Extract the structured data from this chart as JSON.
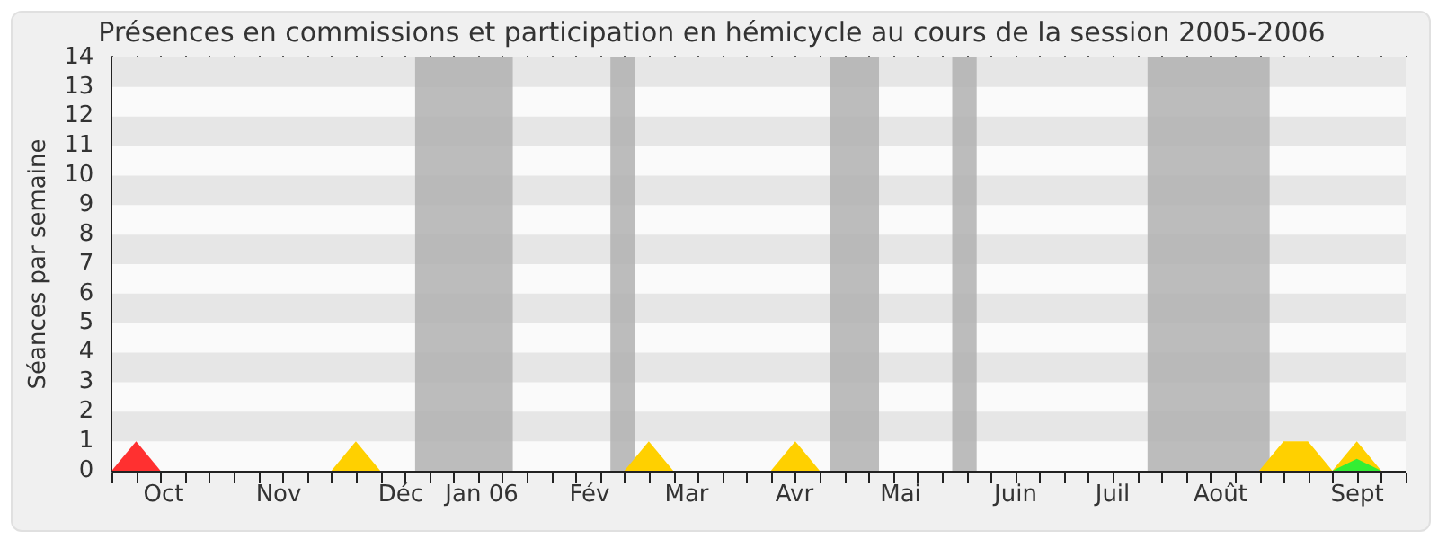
{
  "chart_data": {
    "type": "area",
    "title": "Présences en commissions et participation en hémicycle au cours de la session 2005-2006",
    "ylabel": "Séances par semaine",
    "x": [
      "2005-09-17",
      "2005-09-24",
      "2005-10-01",
      "2005-10-08",
      "2005-10-15",
      "2005-10-22",
      "2005-10-29",
      "2005-11-05",
      "2005-11-12",
      "2005-11-19",
      "2005-11-26",
      "2005-12-03",
      "2005-12-10",
      "2005-12-17",
      "2005-12-24",
      "2005-12-31",
      "2006-01-07",
      "2006-01-14",
      "2006-01-21",
      "2006-01-28",
      "2006-02-04",
      "2006-02-11",
      "2006-02-18",
      "2006-02-25",
      "2006-03-04",
      "2006-03-11",
      "2006-03-18",
      "2006-03-25",
      "2006-04-01",
      "2006-04-08",
      "2006-04-15",
      "2006-04-22",
      "2006-04-29",
      "2006-05-06",
      "2006-05-13",
      "2006-05-20",
      "2006-05-27",
      "2006-06-03",
      "2006-06-10",
      "2006-06-17",
      "2006-06-24",
      "2006-07-01",
      "2006-07-08",
      "2006-07-15",
      "2006-07-22",
      "2006-07-29",
      "2006-08-05",
      "2006-08-12",
      "2006-08-19",
      "2006-08-26",
      "2006-09-02",
      "2006-09-09",
      "2006-09-16"
    ],
    "series": [
      {
        "color": "#ff3030",
        "values": [
          0,
          1,
          0,
          null,
          null,
          null,
          null,
          null,
          null,
          null,
          null,
          null,
          null,
          null,
          null,
          null,
          null,
          null,
          null,
          null,
          null,
          null,
          null,
          null,
          null,
          null,
          null,
          null,
          null,
          null,
          null,
          null,
          null,
          null,
          null,
          null,
          null,
          null,
          null,
          null,
          null,
          null,
          null,
          null,
          null,
          null,
          null,
          null,
          null,
          null,
          null,
          null,
          null
        ]
      },
      {
        "color": "#ffd000",
        "values": [
          null,
          null,
          null,
          null,
          null,
          null,
          null,
          null,
          null,
          0,
          1,
          0,
          null,
          null,
          null,
          null,
          null,
          null,
          null,
          null,
          null,
          0,
          1,
          0,
          null,
          null,
          null,
          0,
          1,
          0,
          null,
          null,
          null,
          null,
          null,
          null,
          null,
          null,
          null,
          null,
          null,
          null,
          null,
          null,
          null,
          null,
          null,
          0,
          1,
          1,
          0,
          1,
          0
        ]
      },
      {
        "color": "#33ee33",
        "values": [
          null,
          null,
          null,
          null,
          null,
          null,
          null,
          null,
          null,
          null,
          null,
          null,
          null,
          null,
          null,
          null,
          null,
          null,
          null,
          null,
          null,
          null,
          null,
          null,
          null,
          null,
          null,
          null,
          null,
          null,
          null,
          null,
          null,
          null,
          null,
          null,
          null,
          null,
          null,
          null,
          null,
          null,
          null,
          null,
          null,
          null,
          null,
          null,
          null,
          null,
          0,
          0.4,
          0
        ]
      }
    ],
    "xlim": [
      "2005-09-17",
      "2006-09-23"
    ],
    "xticks": [
      {
        "value": "2005-09-17",
        "label": null
      },
      {
        "value": "2005-09-24",
        "label": null
      },
      {
        "value": "2005-10-01",
        "label": null
      },
      {
        "value": "2005-10-08",
        "label": null
      },
      {
        "value": "2005-10-15",
        "label": null
      },
      {
        "value": "2005-10-22",
        "label": null
      },
      {
        "value": "2005-10-29",
        "label": null
      },
      {
        "value": "2005-11-05",
        "label": null
      },
      {
        "value": "2005-11-12",
        "label": null
      },
      {
        "value": "2005-11-19",
        "label": null
      },
      {
        "value": "2005-11-26",
        "label": null
      },
      {
        "value": "2005-12-03",
        "label": null
      },
      {
        "value": "2005-12-10",
        "label": null
      },
      {
        "value": "2005-12-17",
        "label": null
      },
      {
        "value": "2005-12-24",
        "label": null
      },
      {
        "value": "2005-12-31",
        "label": null
      },
      {
        "value": "2006-01-07",
        "label": null
      },
      {
        "value": "2006-01-14",
        "label": null
      },
      {
        "value": "2006-01-21",
        "label": null
      },
      {
        "value": "2006-01-28",
        "label": null
      },
      {
        "value": "2006-02-04",
        "label": null
      },
      {
        "value": "2006-02-11",
        "label": null
      },
      {
        "value": "2006-02-18",
        "label": null
      },
      {
        "value": "2006-02-25",
        "label": null
      },
      {
        "value": "2006-03-04",
        "label": null
      },
      {
        "value": "2006-03-11",
        "label": null
      },
      {
        "value": "2006-03-18",
        "label": null
      },
      {
        "value": "2006-03-25",
        "label": null
      },
      {
        "value": "2006-04-01",
        "label": null
      },
      {
        "value": "2006-04-08",
        "label": null
      },
      {
        "value": "2006-04-15",
        "label": null
      },
      {
        "value": "2006-04-22",
        "label": null
      },
      {
        "value": "2006-04-29",
        "label": null
      },
      {
        "value": "2006-05-06",
        "label": null
      },
      {
        "value": "2006-05-13",
        "label": null
      },
      {
        "value": "2006-05-20",
        "label": null
      },
      {
        "value": "2006-05-27",
        "label": null
      },
      {
        "value": "2006-06-03",
        "label": null
      },
      {
        "value": "2006-06-10",
        "label": null
      },
      {
        "value": "2006-06-17",
        "label": null
      },
      {
        "value": "2006-06-24",
        "label": null
      },
      {
        "value": "2006-07-01",
        "label": null
      },
      {
        "value": "2006-07-08",
        "label": null
      },
      {
        "value": "2006-07-15",
        "label": null
      },
      {
        "value": "2006-07-22",
        "label": null
      },
      {
        "value": "2006-07-29",
        "label": null
      },
      {
        "value": "2006-08-05",
        "label": null
      },
      {
        "value": "2006-08-12",
        "label": null
      },
      {
        "value": "2006-08-19",
        "label": null
      },
      {
        "value": "2006-08-26",
        "label": null
      },
      {
        "value": "2006-09-02",
        "label": null
      },
      {
        "value": "2006-09-09",
        "label": null
      },
      {
        "value": "2006-09-16",
        "label": null
      },
      {
        "value": "2006-09-23",
        "label": null
      },
      {
        "value": "2005-10-02",
        "label": "Oct"
      },
      {
        "value": "2005-11-04",
        "label": "Nov"
      },
      {
        "value": "2005-12-09",
        "label": "Déc"
      },
      {
        "value": "2006-01-01",
        "label": "Jan 06"
      },
      {
        "value": "2006-02-01",
        "label": "Fév"
      },
      {
        "value": "2006-03-01",
        "label": "Mar"
      },
      {
        "value": "2006-04-01",
        "label": "Avr"
      },
      {
        "value": "2006-05-01",
        "label": "Mai"
      },
      {
        "value": "2006-06-03",
        "label": "Juin"
      },
      {
        "value": "2006-07-01",
        "label": "Juil"
      },
      {
        "value": "2006-08-01",
        "label": "Août"
      },
      {
        "value": "2006-09-09",
        "label": "Sept"
      }
    ],
    "ylim": [
      0,
      14
    ],
    "yticks": [
      0,
      1,
      2,
      3,
      4,
      5,
      6,
      7,
      8,
      9,
      10,
      11,
      12,
      13,
      14
    ],
    "bands": [
      {
        "axis": "x",
        "from": "2005-12-13",
        "to": "2006-01-10",
        "color": "#b0b0b0"
      },
      {
        "axis": "x",
        "from": "2006-02-07",
        "to": "2006-02-14",
        "color": "#b0b0b0"
      },
      {
        "axis": "x",
        "from": "2006-04-11",
        "to": "2006-04-25",
        "color": "#b0b0b0"
      },
      {
        "axis": "x",
        "from": "2006-05-16",
        "to": "2006-05-23",
        "color": "#b0b0b0"
      },
      {
        "axis": "x",
        "from": "2006-07-11",
        "to": "2006-08-15",
        "color": "#b0b0b0"
      }
    ],
    "legend": false,
    "marker": "none"
  }
}
